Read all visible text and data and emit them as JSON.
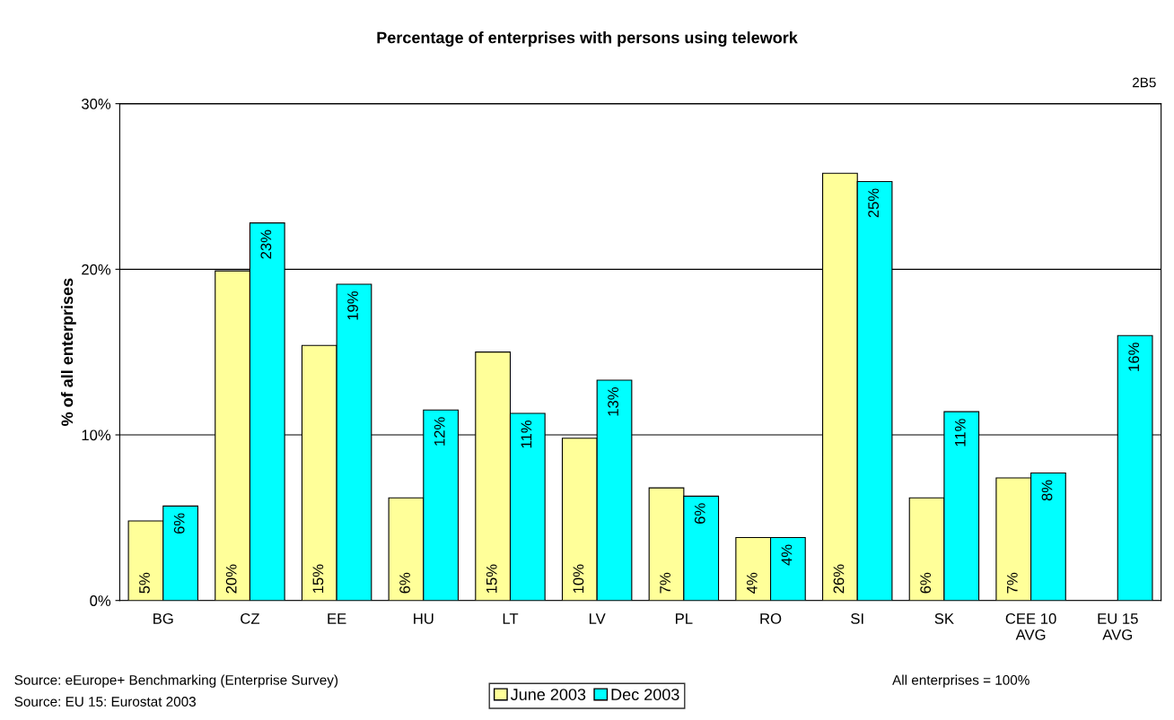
{
  "chart_data": {
    "type": "bar",
    "title": "Percentage of enterprises with persons using telework",
    "ylabel": "% of all enterprises",
    "categories": [
      "BG",
      "CZ",
      "EE",
      "HU",
      "LT",
      "LV",
      "PL",
      "RO",
      "SI",
      "SK",
      "CEE 10\nAVG",
      "EU 15\nAVG"
    ],
    "series": [
      {
        "name": "June 2003",
        "color": "#ffff99",
        "values": [
          4.8,
          19.9,
          15.4,
          6.2,
          15.0,
          9.8,
          6.8,
          3.8,
          25.8,
          6.2,
          7.4,
          null
        ],
        "value_labels": [
          "5%",
          "20%",
          "15%",
          "6%",
          "15%",
          "10%",
          "7%",
          "4%",
          "26%",
          "6%",
          "7%",
          null
        ]
      },
      {
        "name": "Dec 2003",
        "color": "#00ffff",
        "values": [
          5.7,
          22.8,
          19.1,
          11.5,
          11.3,
          13.3,
          6.3,
          3.8,
          25.3,
          11.4,
          7.7,
          16.0
        ],
        "value_labels": [
          "6%",
          "23%",
          "19%",
          "12%",
          "11%",
          "13%",
          "6%",
          "4%",
          "25%",
          "11%",
          "8%",
          "16%"
        ]
      }
    ],
    "ylim": [
      0,
      30
    ],
    "yticks": [
      {
        "value": 0,
        "label": "0%"
      },
      {
        "value": 10,
        "label": "10%"
      },
      {
        "value": 20,
        "label": "20%"
      },
      {
        "value": 30,
        "label": "30%"
      }
    ],
    "grid": "y",
    "legend": "bottom",
    "annotations": [
      "2B5",
      "Source: eEurope+ Benchmarking (Enterprise Survey)",
      "Source: EU 15: Eurostat 2003",
      "All enterprises = 100%"
    ]
  }
}
